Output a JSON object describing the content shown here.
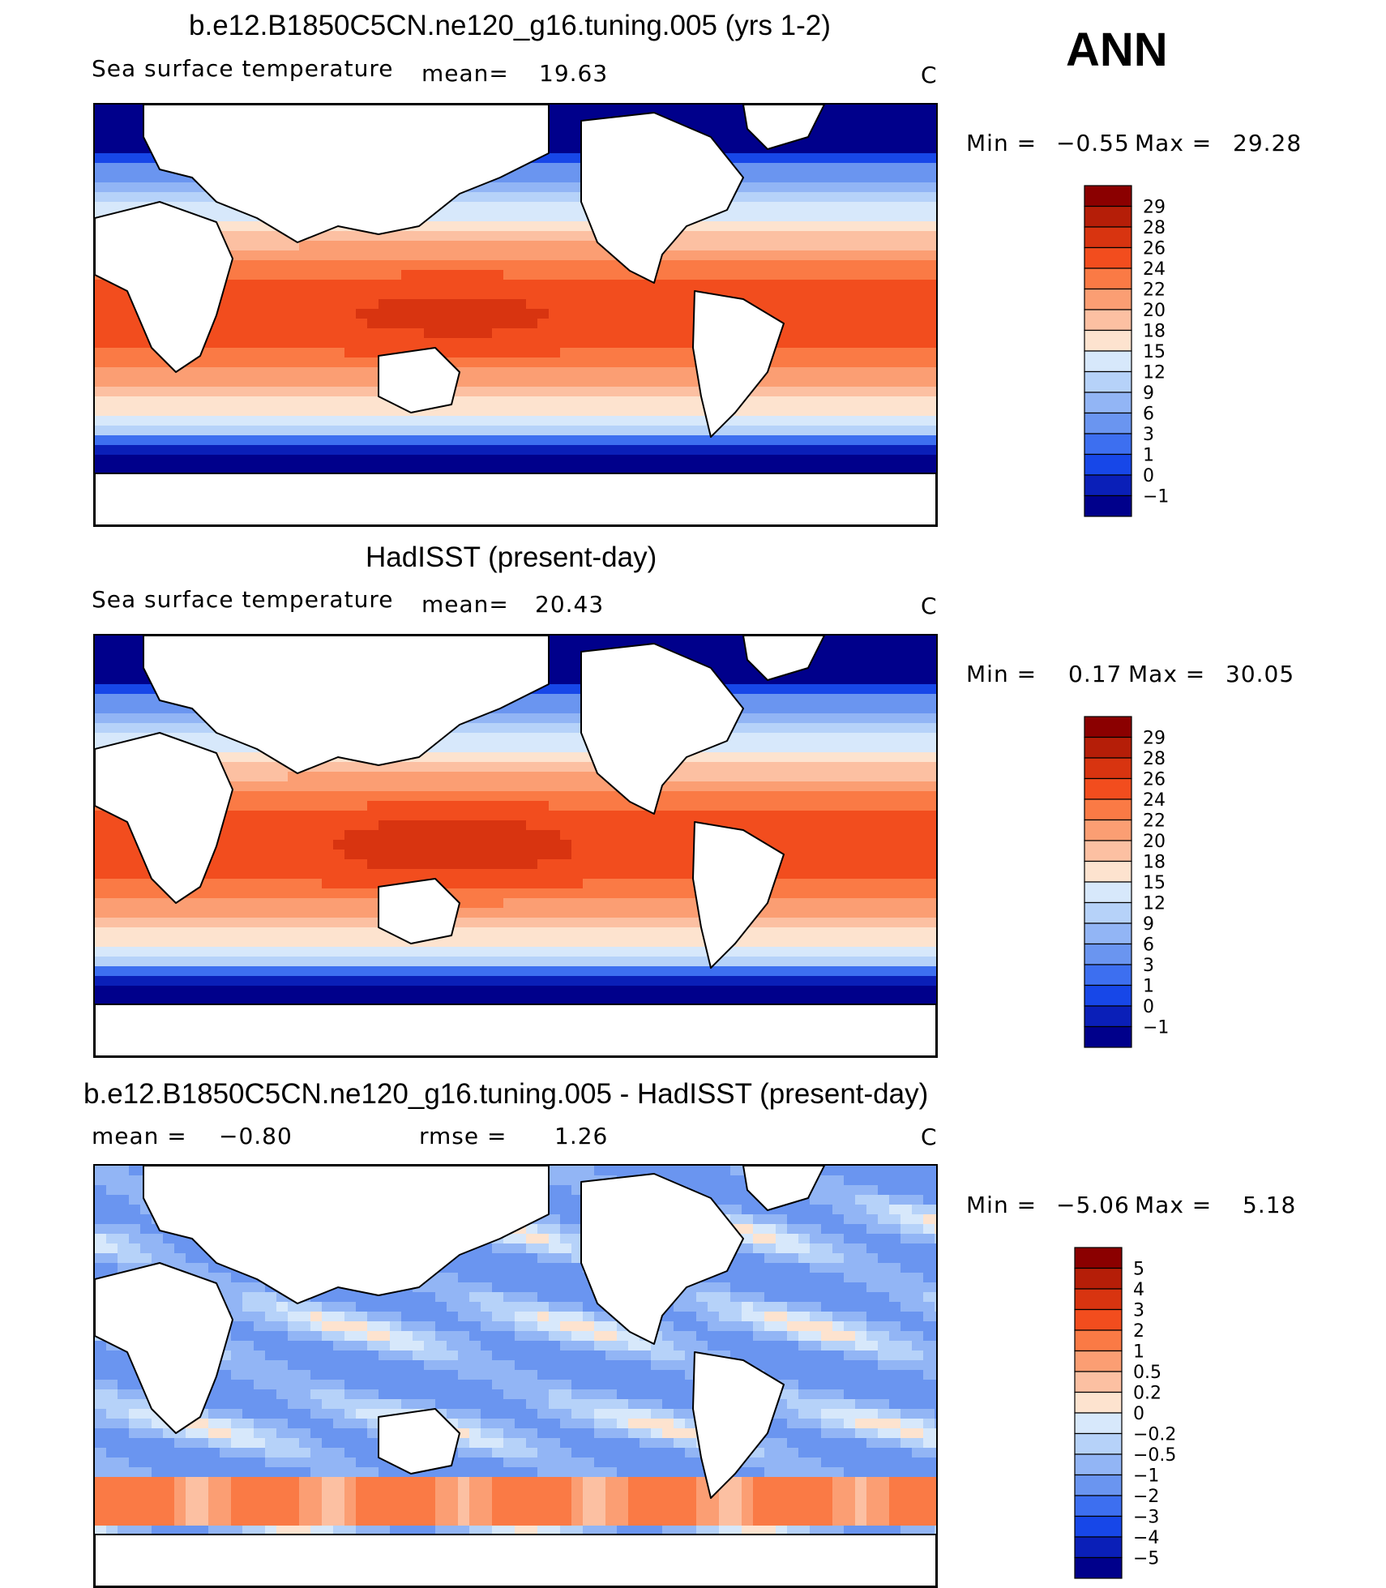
{
  "season": "ANN",
  "panels": [
    {
      "title": "b.e12.B1850C5CN.ne120_g16.tuning.005 (yrs 1-2)",
      "variable": "Sea surface temperature",
      "stat_label": "mean=",
      "stat_value": "19.63",
      "units": "C",
      "min_label": "Min =",
      "min_value": "−0.55",
      "max_label": "Max =",
      "max_value": "29.28",
      "legend_levels": [
        "29",
        "28",
        "26",
        "24",
        "22",
        "20",
        "18",
        "15",
        "12",
        "9",
        "6",
        "3",
        "1",
        "0",
        "−1"
      ],
      "legend_colors": [
        "#8b0000",
        "#b51e08",
        "#d83410",
        "#f24d1e",
        "#fa7a45",
        "#fb9e73",
        "#fcc0a2",
        "#fde3cf",
        "#d7e8fb",
        "#b6d2f9",
        "#92b5f5",
        "#6a95f0",
        "#3d6ff0",
        "#1747e8",
        "#0a1fb8",
        "#00008b"
      ],
      "kind": "abs"
    },
    {
      "title": "HadISST (present-day)",
      "variable": "Sea surface temperature",
      "stat_label": "mean=",
      "stat_value": "20.43",
      "units": "C",
      "min_label": "Min =",
      "min_value": "0.17",
      "max_label": "Max =",
      "max_value": "30.05",
      "legend_levels": [
        "29",
        "28",
        "26",
        "24",
        "22",
        "20",
        "18",
        "15",
        "12",
        "9",
        "6",
        "3",
        "1",
        "0",
        "−1"
      ],
      "legend_colors": [
        "#8b0000",
        "#b51e08",
        "#d83410",
        "#f24d1e",
        "#fa7a45",
        "#fb9e73",
        "#fcc0a2",
        "#fde3cf",
        "#d7e8fb",
        "#b6d2f9",
        "#92b5f5",
        "#6a95f0",
        "#3d6ff0",
        "#1747e8",
        "#0a1fb8",
        "#00008b"
      ],
      "kind": "abs"
    },
    {
      "title": "b.e12.B1850C5CN.ne120_g16.tuning.005 - HadISST (present-day)",
      "variable": "",
      "stat_label": "mean =",
      "stat_value": "−0.80",
      "rmse_label": "rmse =",
      "rmse_value": "1.26",
      "units": "C",
      "min_label": "Min =",
      "min_value": "−5.06",
      "max_label": "Max =",
      "max_value": "5.18",
      "legend_levels": [
        "5",
        "4",
        "3",
        "2",
        "1",
        "0.5",
        "0.2",
        "0",
        "−0.2",
        "−0.5",
        "−1",
        "−2",
        "−3",
        "−4",
        "−5"
      ],
      "legend_colors": [
        "#8b0000",
        "#b51e08",
        "#d83410",
        "#f24d1e",
        "#fa7a45",
        "#fb9e73",
        "#fcc0a2",
        "#fde3cf",
        "#d7e8fb",
        "#b6d2f9",
        "#92b5f5",
        "#6a95f0",
        "#3d6ff0",
        "#1747e8",
        "#0a1fb8",
        "#00008b"
      ],
      "kind": "diff"
    }
  ],
  "chart_data": [
    {
      "type": "heatmap",
      "title": "b.e12.B1850C5CN.ne120_g16.tuning.005 (yrs 1-2)",
      "subtitle": "Sea surface temperature",
      "units": "C",
      "mean": 19.63,
      "min": -0.55,
      "max": 29.28,
      "color_levels": [
        -1,
        0,
        1,
        3,
        6,
        9,
        12,
        15,
        18,
        20,
        22,
        24,
        26,
        28,
        29
      ]
    },
    {
      "type": "heatmap",
      "title": "HadISST (present-day)",
      "subtitle": "Sea surface temperature",
      "units": "C",
      "mean": 20.43,
      "min": 0.17,
      "max": 30.05,
      "color_levels": [
        -1,
        0,
        1,
        3,
        6,
        9,
        12,
        15,
        18,
        20,
        22,
        24,
        26,
        28,
        29
      ]
    },
    {
      "type": "heatmap",
      "title": "b.e12.B1850C5CN.ne120_g16.tuning.005 - HadISST (present-day)",
      "units": "C",
      "mean": -0.8,
      "rmse": 1.26,
      "min": -5.06,
      "max": 5.18,
      "color_levels": [
        -5,
        -4,
        -3,
        -2,
        -1,
        -0.5,
        -0.2,
        0,
        0.2,
        0.5,
        1,
        2,
        3,
        4,
        5
      ]
    }
  ]
}
